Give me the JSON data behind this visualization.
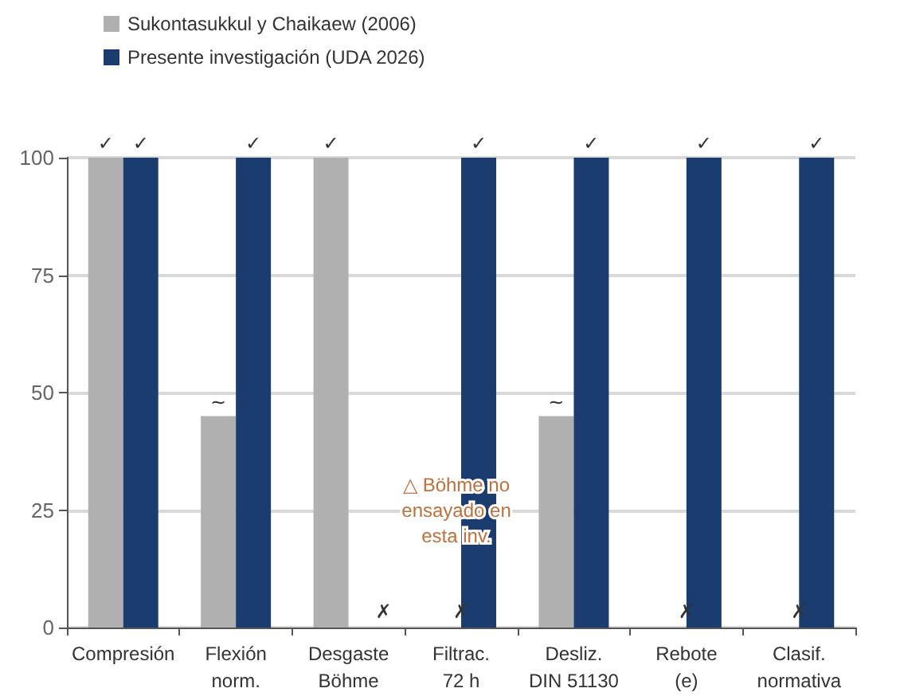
{
  "chart_data": {
    "type": "bar",
    "categories": [
      "Compresión",
      "Flexión\nnorm.",
      "Desgaste\nBöhme",
      "Filtrac.\n72 h",
      "Desliz.\nDIN 51130",
      "Rebote\n(e)",
      "Clasif.\nnormativa"
    ],
    "series": [
      {
        "name": "Sukontasukkul y Chaikaew (2006)",
        "color": "#b0b0b0",
        "values": [
          100,
          45,
          100,
          null,
          45,
          null,
          null
        ],
        "value_labels": [
          "✓",
          "~",
          "✓",
          null,
          "~",
          null,
          null
        ]
      },
      {
        "name": "Presente investigación (UDA 2026)",
        "color": "#1b3c6e",
        "values": [
          100,
          100,
          null,
          100,
          100,
          100,
          100
        ],
        "value_labels": [
          "✓",
          "✓",
          null,
          "✓",
          "✓",
          "✓",
          "✓"
        ]
      }
    ],
    "ylim": [
      0,
      100
    ],
    "yticks": [
      0,
      25,
      50,
      75,
      100
    ],
    "grid": "y",
    "legend": "top left",
    "annotations": [
      {
        "text": "△ Böhme no\nensayado en\nesta inv.",
        "x": "Filtrac.\n72 h",
        "y": 25
      },
      {
        "text": "✗",
        "x": "Desgaste\nBöhme",
        "y": 0
      },
      {
        "text": "✗",
        "x": "Filtrac.\n72 h",
        "y": 0
      },
      {
        "text": "✗",
        "x": "Rebote\n(e)",
        "y": 0
      },
      {
        "text": "✗",
        "x": "Clasif.\nnormativa",
        "y": 0
      }
    ]
  }
}
